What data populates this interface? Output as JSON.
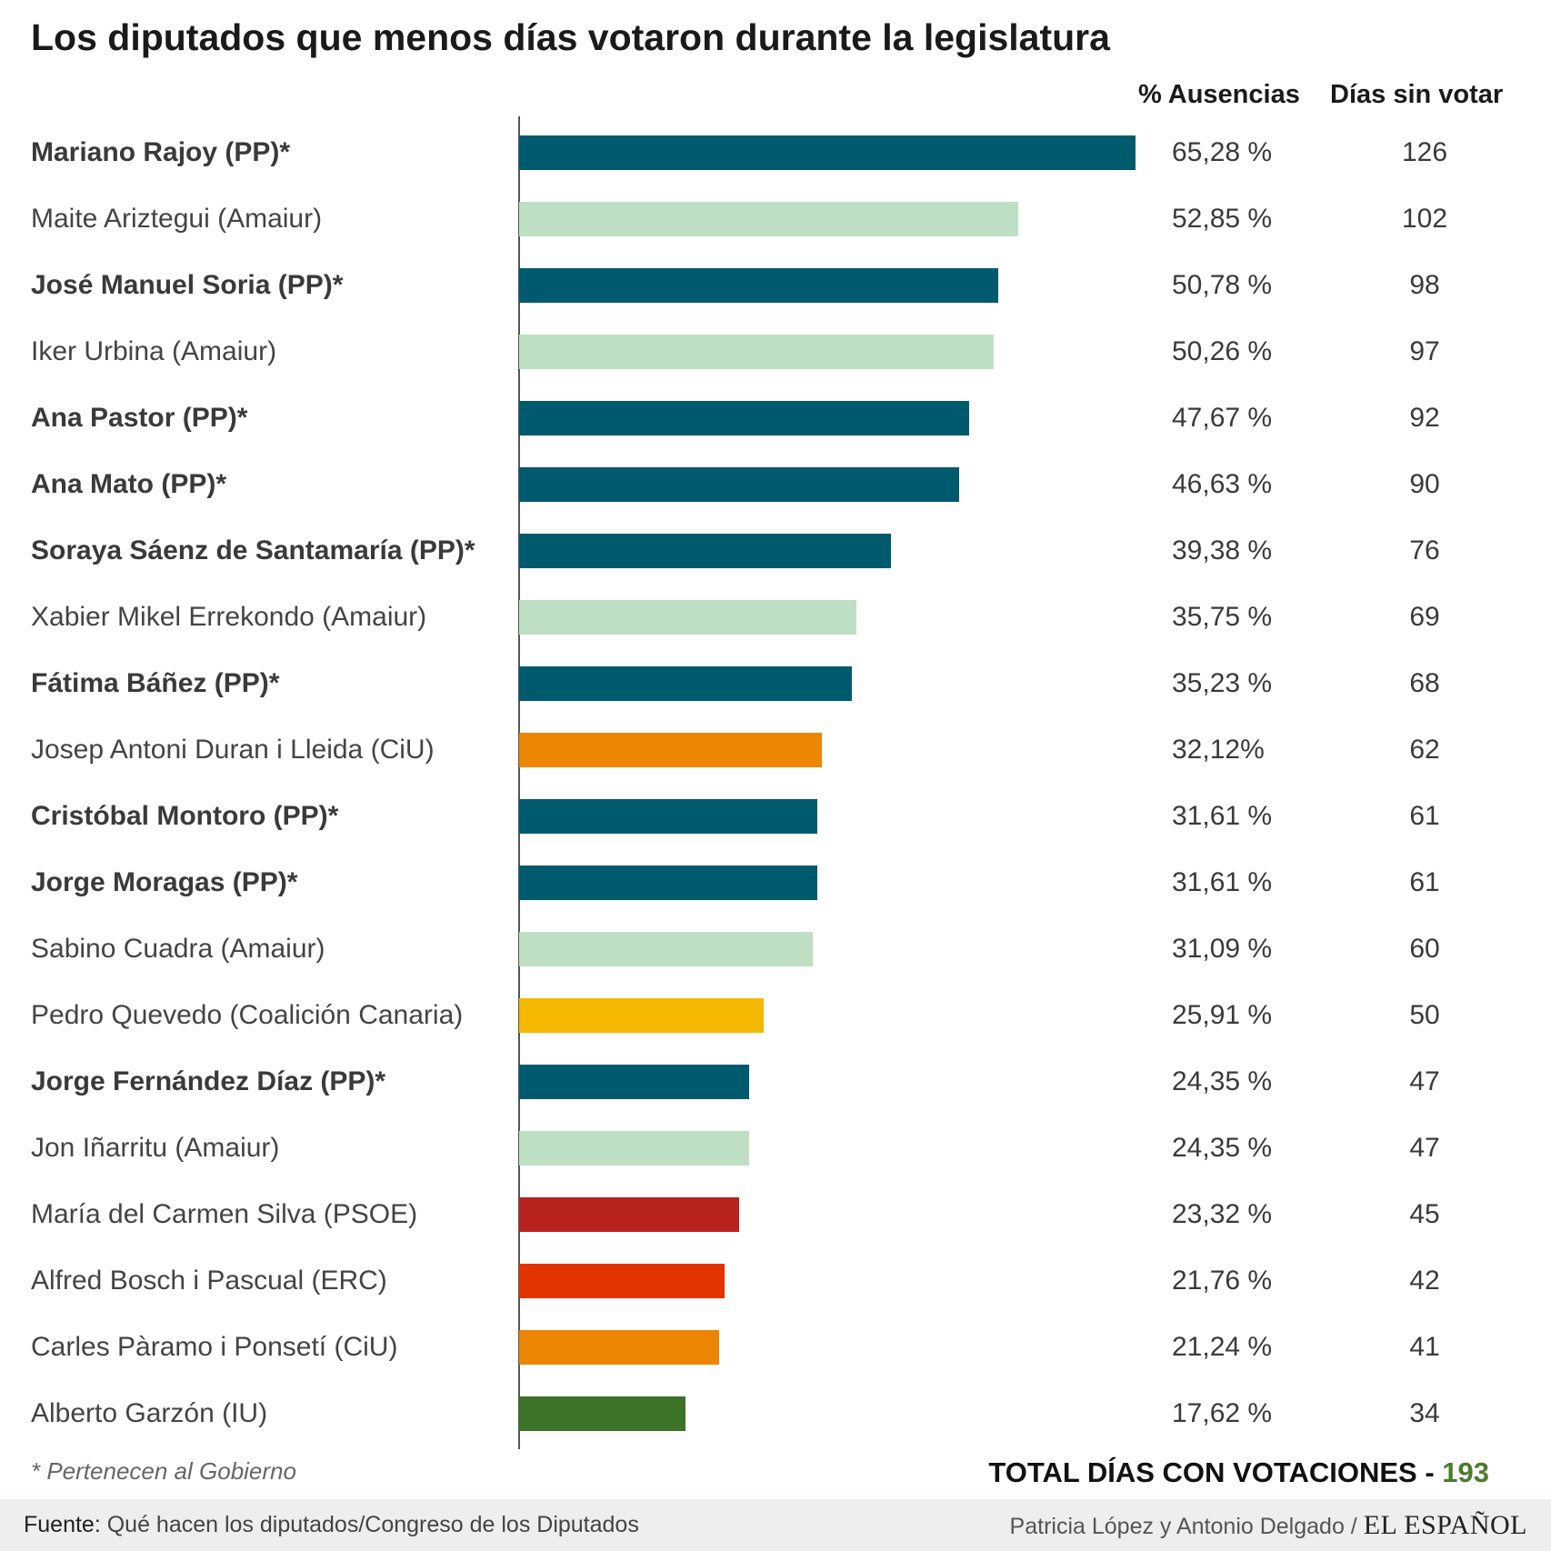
{
  "title": "Los diputados que menos días votaron durante la legislatura",
  "column_headers": {
    "pct": "% Ausencias",
    "days": "Días sin votar"
  },
  "footnote": "* Pertenecen al Gobierno",
  "total": {
    "label": "TOTAL DÍAS CON VOTACIONES - ",
    "value": "193"
  },
  "footer": {
    "source_label": "Fuente:",
    "source_text": " Qué hacen los diputados/Congreso de los Diputados",
    "credit": "Patricia López y Antonio Delgado / ",
    "brand": "EL ESPAÑOL"
  },
  "colors": {
    "PP": "#005a6e",
    "Amaiur": "#bfdfc4",
    "CiU": "#ec8502",
    "Coalición Canaria": "#f5b800",
    "PSOE": "#b8221f",
    "ERC": "#e33400",
    "IU": "#3d7229"
  },
  "chart_data": {
    "type": "bar",
    "orientation": "horizontal",
    "xlim": [
      0,
      100
    ],
    "grid": false,
    "rows": [
      {
        "name": "Mariano Rajoy (PP)*",
        "party": "PP",
        "bold": true,
        "value": 65.28,
        "pct_label": "65,28 %",
        "days": 126
      },
      {
        "name": "Maite Ariztegui (Amaiur)",
        "party": "Amaiur",
        "bold": false,
        "value": 52.85,
        "pct_label": "52,85 %",
        "days": 102
      },
      {
        "name": "José Manuel Soria (PP)*",
        "party": "PP",
        "bold": true,
        "value": 50.78,
        "pct_label": "50,78 %",
        "days": 98
      },
      {
        "name": "Iker Urbina (Amaiur)",
        "party": "Amaiur",
        "bold": false,
        "value": 50.26,
        "pct_label": "50,26 %",
        "days": 97
      },
      {
        "name": "Ana Pastor (PP)*",
        "party": "PP",
        "bold": true,
        "value": 47.67,
        "pct_label": "47,67 %",
        "days": 92
      },
      {
        "name": "Ana Mato (PP)*",
        "party": "PP",
        "bold": true,
        "value": 46.63,
        "pct_label": "46,63 %",
        "days": 90
      },
      {
        "name": "Soraya Sáenz de Santamaría (PP)*",
        "party": "PP",
        "bold": true,
        "value": 39.38,
        "pct_label": "39,38 %",
        "days": 76
      },
      {
        "name": "Xabier Mikel Errekondo (Amaiur)",
        "party": "Amaiur",
        "bold": false,
        "value": 35.75,
        "pct_label": "35,75 %",
        "days": 69
      },
      {
        "name": "Fátima Báñez (PP)*",
        "party": "PP",
        "bold": true,
        "value": 35.23,
        "pct_label": "35,23 %",
        "days": 68
      },
      {
        "name": "Josep Antoni Duran i Lleida (CiU)",
        "party": "CiU",
        "bold": false,
        "value": 32.12,
        "pct_label": "32,12%",
        "days": 62
      },
      {
        "name": "Cristóbal Montoro (PP)*",
        "party": "PP",
        "bold": true,
        "value": 31.61,
        "pct_label": "31,61 %",
        "days": 61
      },
      {
        "name": "Jorge Moragas (PP)*",
        "party": "PP",
        "bold": true,
        "value": 31.61,
        "pct_label": "31,61 %",
        "days": 61
      },
      {
        "name": "Sabino Cuadra (Amaiur)",
        "party": "Amaiur",
        "bold": false,
        "value": 31.09,
        "pct_label": "31,09 %",
        "days": 60
      },
      {
        "name": "Pedro Quevedo (Coalición Canaria)",
        "party": "Coalición Canaria",
        "bold": false,
        "value": 25.91,
        "pct_label": "25,91 %",
        "days": 50
      },
      {
        "name": "Jorge Fernández Díaz (PP)*",
        "party": "PP",
        "bold": true,
        "value": 24.35,
        "pct_label": "24,35 %",
        "days": 47
      },
      {
        "name": "Jon Iñarritu (Amaiur)",
        "party": "Amaiur",
        "bold": false,
        "value": 24.35,
        "pct_label": "24,35 %",
        "days": 47
      },
      {
        "name": "María del Carmen Silva (PSOE)",
        "party": "PSOE",
        "bold": false,
        "value": 23.32,
        "pct_label": "23,32 %",
        "days": 45
      },
      {
        "name": "Alfred Bosch i Pascual (ERC)",
        "party": "ERC",
        "bold": false,
        "value": 21.76,
        "pct_label": "21,76 %",
        "days": 42
      },
      {
        "name": "Carles Pàramo i Ponsetí (CiU)",
        "party": "CiU",
        "bold": false,
        "value": 21.24,
        "pct_label": "21,24 %",
        "days": 41
      },
      {
        "name": "Alberto Garzón (IU)",
        "party": "IU",
        "bold": false,
        "value": 17.62,
        "pct_label": "17,62 %",
        "days": 34
      }
    ]
  }
}
